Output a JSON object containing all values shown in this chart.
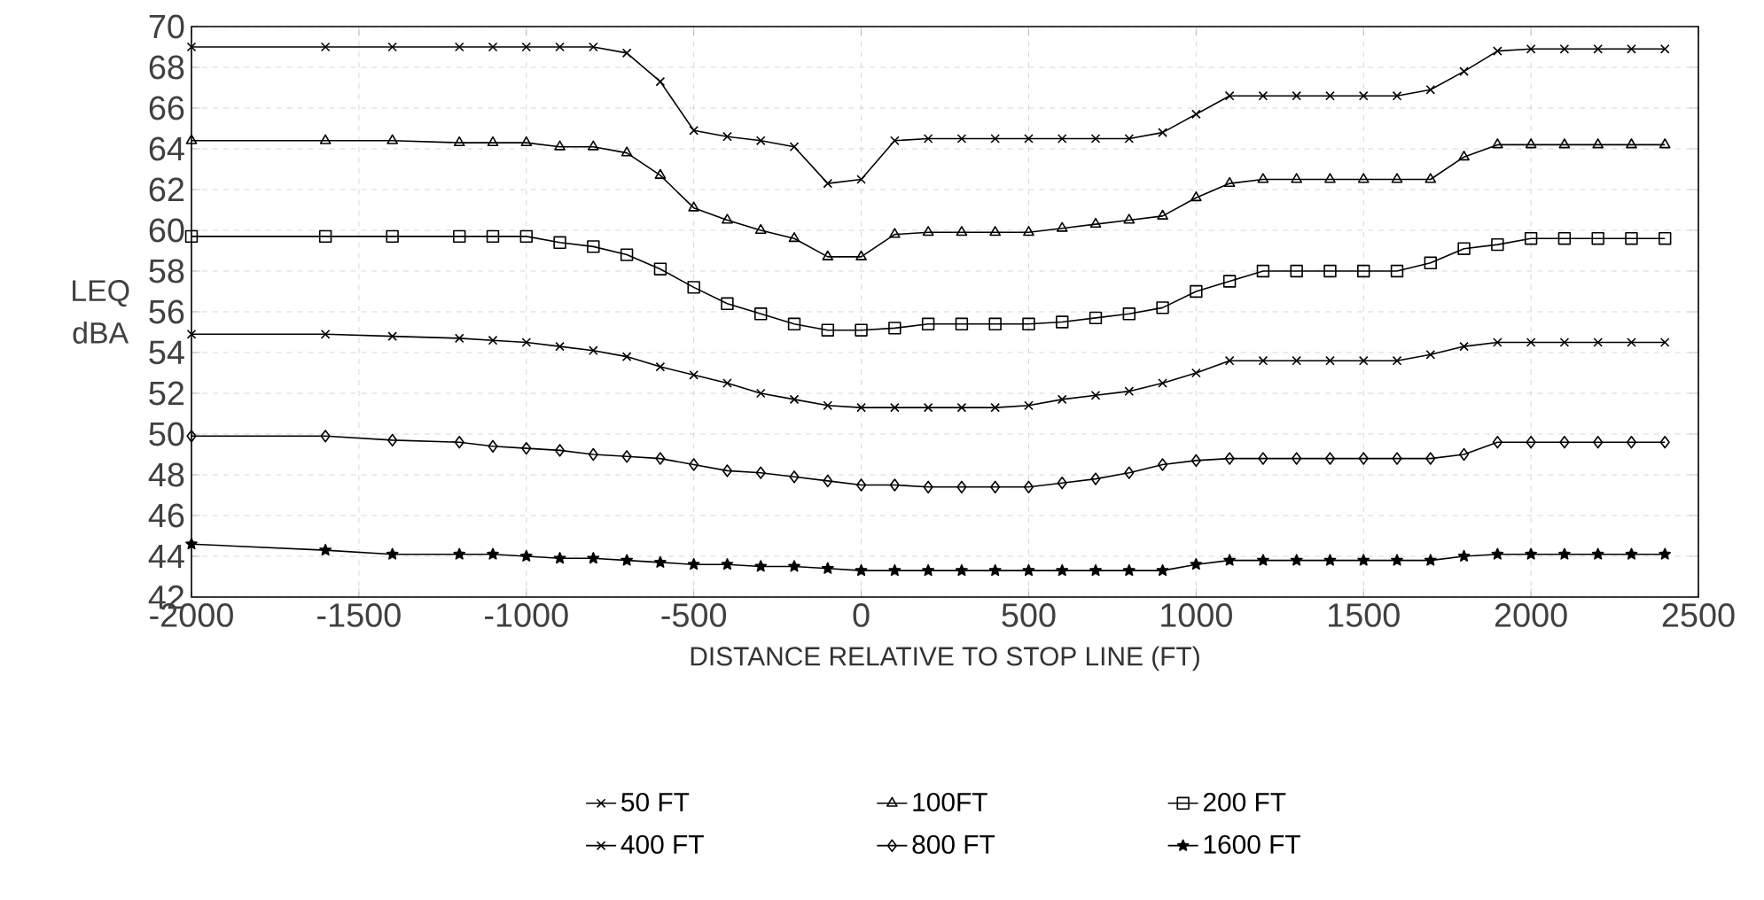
{
  "chart_data": {
    "type": "line",
    "xlabel": "DISTANCE RELATIVE TO STOP LINE (FT)",
    "ylabel": "LEQ dBA",
    "x": [
      -2000,
      -1600,
      -1400,
      -1200,
      -1100,
      -1000,
      -900,
      -800,
      -700,
      -600,
      -500,
      -400,
      -300,
      -200,
      -100,
      0,
      100,
      200,
      300,
      400,
      500,
      600,
      700,
      800,
      900,
      1000,
      1100,
      1200,
      1300,
      1400,
      1500,
      1600,
      1700,
      1800,
      1900,
      2000,
      2100,
      2200,
      2300,
      2400
    ],
    "series": [
      {
        "name": "50 FT",
        "color": "#000000",
        "marker": "cross",
        "values": [
          69,
          69,
          69,
          69,
          69,
          69,
          69,
          69,
          68.7,
          67.3,
          64.9,
          64.6,
          64.4,
          64.1,
          62.3,
          62.5,
          64.4,
          64.5,
          64.5,
          64.5,
          64.5,
          64.5,
          64.5,
          64.5,
          64.8,
          65.7,
          66.6,
          66.6,
          66.6,
          66.6,
          66.6,
          66.6,
          66.9,
          67.8,
          68.8,
          68.9,
          68.9,
          68.9,
          68.9,
          68.9
        ]
      },
      {
        "name": "100FT",
        "color": "#000000",
        "marker": "triangle",
        "values": [
          64.4,
          64.4,
          64.4,
          64.3,
          64.3,
          64.3,
          64.1,
          64.1,
          63.8,
          62.7,
          61.1,
          60.5,
          60.0,
          59.6,
          58.7,
          58.7,
          59.8,
          59.9,
          59.9,
          59.9,
          59.9,
          60.1,
          60.3,
          60.5,
          60.7,
          61.6,
          62.3,
          62.5,
          62.5,
          62.5,
          62.5,
          62.5,
          62.5,
          63.6,
          64.2,
          64.2,
          64.2,
          64.2,
          64.2,
          64.2
        ]
      },
      {
        "name": "200 FT",
        "color": "#000000",
        "marker": "square",
        "values": [
          59.7,
          59.7,
          59.7,
          59.7,
          59.7,
          59.7,
          59.4,
          59.2,
          58.8,
          58.1,
          57.2,
          56.4,
          55.9,
          55.4,
          55.1,
          55.1,
          55.2,
          55.4,
          55.4,
          55.4,
          55.4,
          55.5,
          55.7,
          55.9,
          56.2,
          57.0,
          57.5,
          58.0,
          58.0,
          58.0,
          58.0,
          58.0,
          58.4,
          59.1,
          59.3,
          59.6,
          59.6,
          59.6,
          59.6,
          59.6
        ]
      },
      {
        "name": "400 FT",
        "color": "#000000",
        "marker": "cross",
        "values": [
          54.9,
          54.9,
          54.8,
          54.7,
          54.6,
          54.5,
          54.3,
          54.1,
          53.8,
          53.3,
          52.9,
          52.5,
          52.0,
          51.7,
          51.4,
          51.3,
          51.3,
          51.3,
          51.3,
          51.3,
          51.4,
          51.7,
          51.9,
          52.1,
          52.5,
          53.0,
          53.6,
          53.6,
          53.6,
          53.6,
          53.6,
          53.6,
          53.9,
          54.3,
          54.5,
          54.5,
          54.5,
          54.5,
          54.5,
          54.5
        ]
      },
      {
        "name": "800 FT",
        "color": "#000000",
        "marker": "diamond",
        "values": [
          49.9,
          49.9,
          49.7,
          49.6,
          49.4,
          49.3,
          49.2,
          49.0,
          48.9,
          48.8,
          48.5,
          48.2,
          48.1,
          47.9,
          47.7,
          47.5,
          47.5,
          47.4,
          47.4,
          47.4,
          47.4,
          47.6,
          47.8,
          48.1,
          48.5,
          48.7,
          48.8,
          48.8,
          48.8,
          48.8,
          48.8,
          48.8,
          48.8,
          49.0,
          49.6,
          49.6,
          49.6,
          49.6,
          49.6,
          49.6
        ]
      },
      {
        "name": "1600 FT",
        "color": "#000000",
        "marker": "star",
        "values": [
          44.6,
          44.3,
          44.1,
          44.1,
          44.1,
          44.0,
          43.9,
          43.9,
          43.8,
          43.7,
          43.6,
          43.6,
          43.5,
          43.5,
          43.4,
          43.3,
          43.3,
          43.3,
          43.3,
          43.3,
          43.3,
          43.3,
          43.3,
          43.3,
          43.3,
          43.6,
          43.8,
          43.8,
          43.8,
          43.8,
          43.8,
          43.8,
          43.8,
          44.0,
          44.1,
          44.1,
          44.1,
          44.1,
          44.1,
          44.1
        ]
      }
    ],
    "xlim": [
      -2000,
      2500
    ],
    "ylim": [
      42,
      70
    ],
    "xticks": [
      -2000,
      -1500,
      -1000,
      -500,
      0,
      500,
      1000,
      1500,
      2000,
      2500
    ],
    "yticks": [
      42,
      44,
      46,
      48,
      50,
      52,
      54,
      56,
      58,
      60,
      62,
      64,
      66,
      68,
      70
    ],
    "grid": true,
    "legend": "bottom",
    "line_style": "solid"
  }
}
